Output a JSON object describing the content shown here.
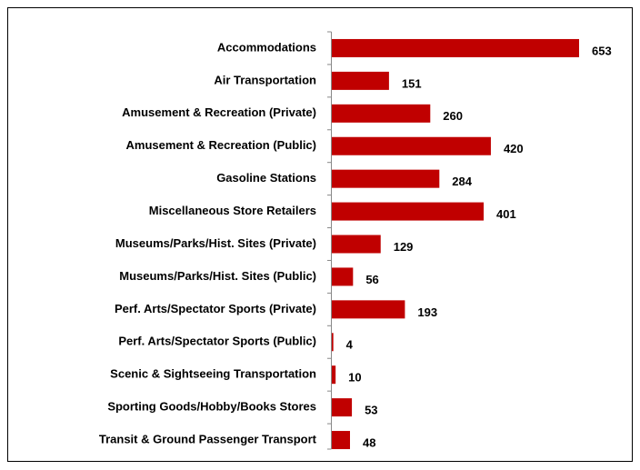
{
  "chart_data": {
    "type": "bar",
    "orientation": "horizontal",
    "categories": [
      "Accommodations",
      "Air Transportation",
      "Amusement & Recreation (Private)",
      "Amusement & Recreation (Public)",
      "Gasoline Stations",
      "Miscellaneous Store Retailers",
      "Museums/Parks/Hist. Sites (Private)",
      "Museums/Parks/Hist. Sites (Public)",
      "Perf. Arts/Spectator Sports (Private)",
      "Perf. Arts/Spectator Sports (Public)",
      "Scenic & Sightseeing Transportation",
      "Sporting Goods/Hobby/Books Stores",
      "Transit & Ground Passenger Transport"
    ],
    "values": [
      653,
      151,
      260,
      420,
      284,
      401,
      129,
      56,
      193,
      4,
      10,
      53,
      48
    ],
    "color": "#c00000"
  }
}
